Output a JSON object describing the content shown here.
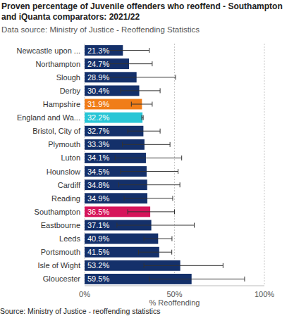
{
  "chart_data": {
    "type": "bar",
    "orientation": "horizontal",
    "title": "Proven percentage of Juvenile offenders who reoffend - Southampton and iQuanta comparators: 2021/22",
    "subtitle": "Data source: Ministry of Justice - Reoffending Statistics",
    "x_label": "% Reoffending",
    "source": "Source: Ministry of Justice - reoffending statistics",
    "categories": [
      "Newcastle upon ...",
      "Northampton",
      "Slough",
      "Derby",
      "Hampshire",
      "England and Wa...",
      "Bristol, City of",
      "Plymouth",
      "Luton",
      "Hounslow",
      "Cardiff",
      "Reading",
      "Southampton",
      "Eastbourne",
      "Leeds",
      "Portsmouth",
      "Isle of Wight",
      "Gloucester"
    ],
    "values": [
      21.3,
      24.7,
      28.9,
      30.4,
      31.9,
      32.2,
      32.7,
      33.3,
      34.1,
      34.5,
      34.8,
      34.9,
      36.5,
      37.1,
      40.9,
      41.5,
      53.2,
      59.5
    ],
    "value_labels": [
      "21.3%",
      "24.7%",
      "28.9%",
      "30.4%",
      "31.9%",
      "32.2%",
      "32.7%",
      "33.3%",
      "34.1%",
      "34.5%",
      "34.8%",
      "34.9%",
      "36.5%",
      "37.1%",
      "40.9%",
      "41.5%",
      "53.2%",
      "59.5%"
    ],
    "ci_lower": [
      12,
      14,
      13,
      20,
      26,
      31.8,
      24,
      21,
      17,
      20,
      19,
      22,
      24,
      18,
      33,
      30,
      33,
      36
    ],
    "ci_upper": [
      36,
      37.6,
      50.6,
      42,
      37.6,
      32.6,
      42,
      47.5,
      54,
      52,
      53,
      49,
      50,
      61,
      48.6,
      48.5,
      77,
      89
    ],
    "colors": [
      "#14306a",
      "#14306a",
      "#14306a",
      "#14306a",
      "#f07d18",
      "#29c6d6",
      "#14306a",
      "#14306a",
      "#14306a",
      "#14306a",
      "#14306a",
      "#14306a",
      "#d6145a",
      "#14306a",
      "#14306a",
      "#14306a",
      "#14306a",
      "#14306a"
    ],
    "xlim": [
      0,
      100
    ],
    "xticks": [
      {
        "value": 0,
        "label": "0%"
      },
      {
        "value": 50,
        "label": "50%"
      },
      {
        "value": 100,
        "label": "100%"
      }
    ],
    "grid": true,
    "data_labels": true
  }
}
